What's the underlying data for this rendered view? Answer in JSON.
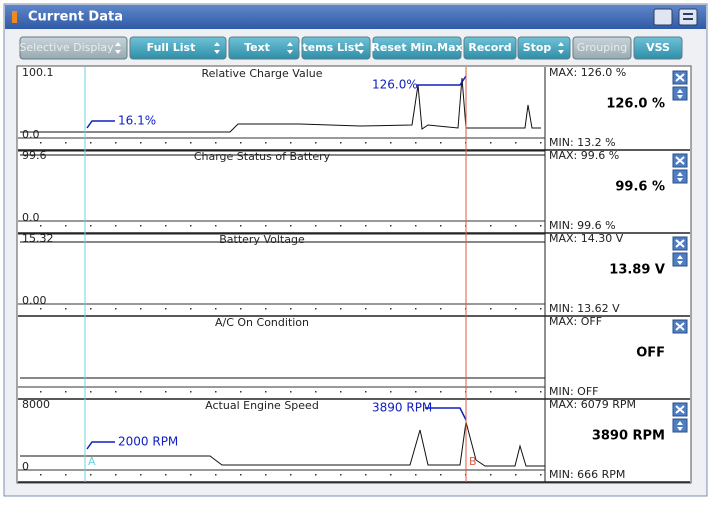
{
  "header": {
    "title": "Current Data"
  },
  "toolbar": [
    "Selective Display",
    "Full List",
    "Text",
    "Items List",
    "Reset Min.Max",
    "Record",
    "Stop",
    "Grouping",
    "VSS"
  ],
  "panels": [
    {
      "scale_top": "100.1",
      "scale_bottom": "0.0",
      "name": "Relative Charge Value",
      "max": "MAX: 126.0 %",
      "current": "126.0 %",
      "min": "MIN: 13.2 %",
      "annotations": [
        "126.0%",
        "16.1%"
      ]
    },
    {
      "scale_top": "99.6",
      "scale_bottom": "0.0",
      "name": "Charge Status of Battery",
      "max": "MAX:  99.6 %",
      "current": "99.6 %",
      "min": "MIN:  99.6 %"
    },
    {
      "scale_top": "15.32",
      "scale_bottom": "0.00",
      "name": "Battery Voltage",
      "max": "MAX: 14.30 V",
      "current": "13.89 V",
      "min": "MIN: 13.62 V"
    },
    {
      "name": "A/C On Condition",
      "max": "MAX: OFF",
      "current": "OFF",
      "min": "MIN: OFF"
    },
    {
      "scale_top": "8000",
      "scale_bottom": "0",
      "name": "Actual Engine Speed",
      "max": "MAX:  6079 RPM",
      "current": "3890 RPM",
      "min": "MIN:   666 RPM",
      "annotations": [
        "3890 RPM",
        "2000 RPM"
      ]
    }
  ],
  "cursors": [
    "A",
    "B"
  ]
}
